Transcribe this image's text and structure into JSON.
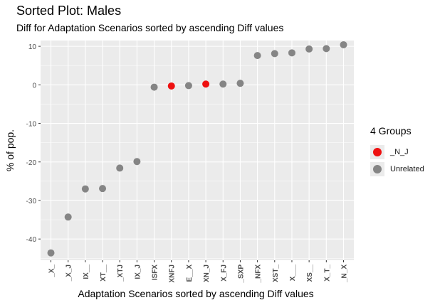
{
  "chart_data": {
    "type": "scatter",
    "title": "Sorted Plot: Males",
    "subtitle": "Diff for Adaptation Scenarios sorted by ascending Diff values",
    "xlabel": "Adaptation Scenarios sorted by ascending Diff values",
    "ylabel": "% of pop.",
    "ylim": [
      -45.5,
      11.5
    ],
    "yticks": [
      10,
      0,
      -10,
      -20,
      -30,
      -40
    ],
    "grid": true,
    "legend_position": "right",
    "legend_title": "4 Groups",
    "groups": [
      {
        "name": "_N_J",
        "color": "#ee1111"
      },
      {
        "name": "Unrelated",
        "color": "#858585"
      }
    ],
    "categories": [
      "_X_",
      "_X_J",
      "IX__",
      "XT__",
      "_XTJ",
      "IX_J",
      "ISFX",
      "XNFJ",
      "E__X",
      "XN_J",
      "X_FJ",
      "_SXP",
      "_NFX",
      "XST_",
      "X___",
      "XS__",
      "X_T_",
      "_N_X"
    ],
    "values": [
      -43.6,
      -34.3,
      -27.0,
      -26.9,
      -21.6,
      -19.9,
      -0.6,
      -0.3,
      -0.2,
      0.2,
      0.2,
      0.4,
      7.6,
      8.1,
      8.3,
      9.3,
      9.4,
      10.4
    ],
    "point_groups": [
      "Unrelated",
      "Unrelated",
      "Unrelated",
      "Unrelated",
      "Unrelated",
      "Unrelated",
      "Unrelated",
      "_N_J",
      "Unrelated",
      "_N_J",
      "Unrelated",
      "Unrelated",
      "Unrelated",
      "Unrelated",
      "Unrelated",
      "Unrelated",
      "Unrelated",
      "Unrelated"
    ]
  }
}
